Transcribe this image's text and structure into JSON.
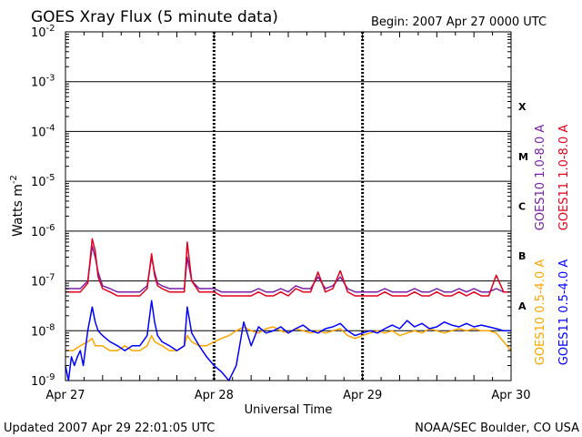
{
  "chart_data": {
    "type": "line",
    "title": "GOES Xray Flux (5 minute data)",
    "begin_label": "Begin:  2007 Apr 27 0000 UTC",
    "ylabel_base": "Watts m",
    "ylabel_exp": "-2",
    "xlabel": "Universal Time",
    "yscale": "log",
    "ylim": [
      1e-09,
      0.01
    ],
    "xlim_days": [
      0,
      3
    ],
    "y_ticks": [
      {
        "base": "10",
        "exp": "-2",
        "value": 0.01
      },
      {
        "base": "10",
        "exp": "-3",
        "value": 0.001
      },
      {
        "base": "10",
        "exp": "-4",
        "value": 0.0001
      },
      {
        "base": "10",
        "exp": "-5",
        "value": 1e-05
      },
      {
        "base": "10",
        "exp": "-6",
        "value": 1e-06
      },
      {
        "base": "10",
        "exp": "-7",
        "value": 1e-07
      },
      {
        "base": "10",
        "exp": "-8",
        "value": 1e-08
      },
      {
        "base": "10",
        "exp": "-9",
        "value": 1e-09
      }
    ],
    "x_ticks": [
      {
        "label": "Apr 27",
        "day": 0
      },
      {
        "label": "Apr 28",
        "day": 1
      },
      {
        "label": "Apr 29",
        "day": 2
      },
      {
        "label": "Apr 30",
        "day": 3
      }
    ],
    "class_levels": [
      {
        "label": "X",
        "value": 0.000316
      },
      {
        "label": "M",
        "value": 3.16e-05
      },
      {
        "label": "C",
        "value": 3.16e-06
      },
      {
        "label": "B",
        "value": 3.16e-07
      },
      {
        "label": "A",
        "value": 3.16e-08
      }
    ],
    "legend": [
      {
        "name": "GOES10 1.0-8.0 A",
        "color": "#7a1fa8"
      },
      {
        "name": "GOES11 1.0-8.0 A",
        "color": "#e0001b"
      },
      {
        "name": "GOES10 0.5-4.0 A",
        "color": "#ffa500"
      },
      {
        "name": "GOES11 0.5-4.0 A",
        "color": "#0000ff"
      }
    ],
    "series": [
      {
        "name": "GOES10 1.0-8.0 A",
        "color": "#7a1fa8",
        "x": [
          0.0,
          0.05,
          0.1,
          0.15,
          0.18,
          0.2,
          0.22,
          0.25,
          0.3,
          0.35,
          0.4,
          0.45,
          0.5,
          0.55,
          0.58,
          0.6,
          0.62,
          0.65,
          0.7,
          0.75,
          0.8,
          0.82,
          0.85,
          0.9,
          0.95,
          1.0,
          1.05,
          1.1,
          1.15,
          1.2,
          1.25,
          1.3,
          1.35,
          1.4,
          1.45,
          1.5,
          1.55,
          1.6,
          1.65,
          1.7,
          1.75,
          1.8,
          1.85,
          1.9,
          1.95,
          2.0,
          2.05,
          2.1,
          2.15,
          2.2,
          2.25,
          2.3,
          2.35,
          2.4,
          2.45,
          2.5,
          2.55,
          2.6,
          2.65,
          2.7,
          2.75,
          2.8,
          2.85,
          2.9,
          2.95,
          3.0
        ],
        "y": [
          7e-08,
          7e-08,
          7e-08,
          1e-07,
          5e-07,
          3e-07,
          1.5e-07,
          8e-08,
          7e-08,
          6e-08,
          6e-08,
          6e-08,
          6e-08,
          8e-08,
          3e-07,
          1.5e-07,
          9e-08,
          8e-08,
          7e-08,
          7e-08,
          7e-08,
          3e-07,
          1e-07,
          7e-08,
          7e-08,
          7e-08,
          6e-08,
          6e-08,
          6e-08,
          6e-08,
          6e-08,
          7e-08,
          6e-08,
          6e-08,
          7e-08,
          6e-08,
          8e-08,
          7e-08,
          7e-08,
          1.2e-07,
          7e-08,
          8e-08,
          1.2e-07,
          7e-08,
          6e-08,
          6e-08,
          6e-08,
          6e-08,
          7e-08,
          6e-08,
          6e-08,
          6e-08,
          7e-08,
          6e-08,
          6e-08,
          7e-08,
          6e-08,
          6e-08,
          7e-08,
          6e-08,
          7e-08,
          6e-08,
          6e-08,
          7e-08,
          6e-08,
          6e-08
        ]
      },
      {
        "name": "GOES11 1.0-8.0 A",
        "color": "#e0001b",
        "x": [
          0.0,
          0.05,
          0.1,
          0.15,
          0.18,
          0.2,
          0.22,
          0.25,
          0.3,
          0.35,
          0.4,
          0.45,
          0.5,
          0.55,
          0.58,
          0.6,
          0.62,
          0.65,
          0.7,
          0.75,
          0.8,
          0.82,
          0.85,
          0.9,
          0.95,
          1.0,
          1.05,
          1.1,
          1.15,
          1.2,
          1.25,
          1.3,
          1.35,
          1.4,
          1.45,
          1.5,
          1.55,
          1.6,
          1.65,
          1.7,
          1.75,
          1.8,
          1.85,
          1.9,
          1.95,
          2.0,
          2.05,
          2.1,
          2.15,
          2.2,
          2.25,
          2.3,
          2.35,
          2.4,
          2.45,
          2.5,
          2.55,
          2.6,
          2.65,
          2.7,
          2.75,
          2.8,
          2.85,
          2.9,
          2.95,
          3.0
        ],
        "y": [
          6e-08,
          6e-08,
          6e-08,
          9e-08,
          7e-07,
          4e-07,
          1.2e-07,
          7e-08,
          6e-08,
          5e-08,
          5e-08,
          5e-08,
          5e-08,
          7e-08,
          3.5e-07,
          1.3e-07,
          8e-08,
          7e-08,
          6e-08,
          6e-08,
          6e-08,
          6e-07,
          1e-07,
          6e-08,
          6e-08,
          6e-08,
          5e-08,
          5e-08,
          5e-08,
          5e-08,
          5e-08,
          6e-08,
          5e-08,
          5e-08,
          6e-08,
          5e-08,
          7e-08,
          6e-08,
          6e-08,
          1.5e-07,
          6e-08,
          7e-08,
          1.6e-07,
          6e-08,
          5e-08,
          5e-08,
          5e-08,
          5e-08,
          6e-08,
          5e-08,
          5e-08,
          5e-08,
          6e-08,
          5e-08,
          5e-08,
          6e-08,
          5e-08,
          5e-08,
          6e-08,
          5e-08,
          6e-08,
          5e-08,
          5e-08,
          1.3e-07,
          6e-08,
          6e-08
        ]
      },
      {
        "name": "GOES10 0.5-4.0 A",
        "color": "#ffa500",
        "x": [
          0.0,
          0.05,
          0.1,
          0.15,
          0.18,
          0.2,
          0.25,
          0.3,
          0.35,
          0.4,
          0.45,
          0.5,
          0.55,
          0.58,
          0.6,
          0.65,
          0.7,
          0.75,
          0.8,
          0.82,
          0.85,
          0.9,
          0.95,
          1.0,
          1.05,
          1.1,
          1.15,
          1.2,
          1.25,
          1.3,
          1.35,
          1.4,
          1.45,
          1.5,
          1.55,
          1.6,
          1.65,
          1.7,
          1.75,
          1.8,
          1.85,
          1.9,
          1.95,
          2.0,
          2.05,
          2.1,
          2.15,
          2.2,
          2.25,
          2.3,
          2.35,
          2.4,
          2.45,
          2.5,
          2.55,
          2.6,
          2.65,
          2.7,
          2.75,
          2.8,
          2.85,
          2.9,
          2.95,
          3.0
        ],
        "y": [
          4e-09,
          4e-09,
          5e-09,
          6e-09,
          7e-09,
          5e-09,
          5e-09,
          4e-09,
          4e-09,
          5e-09,
          4e-09,
          4e-09,
          5e-09,
          8e-09,
          6e-09,
          5e-09,
          4e-09,
          4e-09,
          5e-09,
          8e-09,
          6e-09,
          5e-09,
          5e-09,
          6e-09,
          7e-09,
          8e-09,
          1e-08,
          1.2e-08,
          1e-08,
          9e-09,
          1.1e-08,
          1.2e-08,
          1e-08,
          9e-09,
          1.1e-08,
          1e-08,
          9e-09,
          1e-08,
          9e-09,
          1e-08,
          1.1e-08,
          8e-09,
          7e-09,
          8e-09,
          9e-09,
          1e-08,
          9e-09,
          1e-08,
          8e-09,
          9e-09,
          1e-08,
          9e-09,
          1.1e-08,
          1e-08,
          9e-09,
          1e-08,
          1.1e-08,
          1e-08,
          1.1e-08,
          1e-08,
          1e-08,
          9e-09,
          6e-09,
          4e-09
        ]
      },
      {
        "name": "GOES11 0.5-4.0 A",
        "color": "#0000ff",
        "x": [
          0.0,
          0.02,
          0.04,
          0.06,
          0.08,
          0.1,
          0.12,
          0.15,
          0.18,
          0.2,
          0.22,
          0.25,
          0.3,
          0.35,
          0.4,
          0.45,
          0.5,
          0.55,
          0.58,
          0.6,
          0.62,
          0.65,
          0.7,
          0.75,
          0.8,
          0.82,
          0.85,
          0.9,
          0.95,
          1.0,
          1.05,
          1.1,
          1.15,
          1.2,
          1.25,
          1.3,
          1.35,
          1.4,
          1.45,
          1.5,
          1.55,
          1.6,
          1.65,
          1.7,
          1.75,
          1.8,
          1.85,
          1.9,
          1.95,
          2.0,
          2.05,
          2.1,
          2.15,
          2.2,
          2.25,
          2.3,
          2.35,
          2.4,
          2.45,
          2.5,
          2.55,
          2.6,
          2.65,
          2.7,
          2.75,
          2.8,
          2.85,
          2.9,
          2.95,
          3.0
        ],
        "y": [
          2e-09,
          1e-09,
          3e-09,
          2e-09,
          3e-09,
          4e-09,
          2e-09,
          1e-08,
          3e-08,
          1.5e-08,
          1e-08,
          8e-09,
          6e-09,
          5e-09,
          4e-09,
          5e-09,
          5e-09,
          8e-09,
          4e-08,
          1.5e-08,
          8e-09,
          6e-09,
          5e-09,
          4e-09,
          5e-09,
          3e-08,
          9e-09,
          5e-09,
          3e-09,
          2e-09,
          1.5e-09,
          1e-09,
          2e-09,
          1.5e-08,
          5e-09,
          1.2e-08,
          9e-09,
          1e-08,
          1.2e-08,
          9e-09,
          1.1e-08,
          1.3e-08,
          1e-08,
          9e-09,
          1.1e-08,
          1.2e-08,
          1.4e-08,
          1e-08,
          8e-09,
          9e-09,
          1e-08,
          9e-09,
          1.1e-08,
          1.3e-08,
          1.1e-08,
          1.6e-08,
          1.2e-08,
          1.4e-08,
          1.1e-08,
          1.2e-08,
          1.5e-08,
          1.3e-08,
          1.2e-08,
          1.4e-08,
          1.2e-08,
          1.3e-08,
          1.2e-08,
          1.1e-08,
          1e-08,
          1e-08
        ]
      }
    ]
  },
  "footer": {
    "updated": "Updated 2007 Apr 29 22:01:05 UTC",
    "source": "NOAA/SEC Boulder, CO USA"
  }
}
